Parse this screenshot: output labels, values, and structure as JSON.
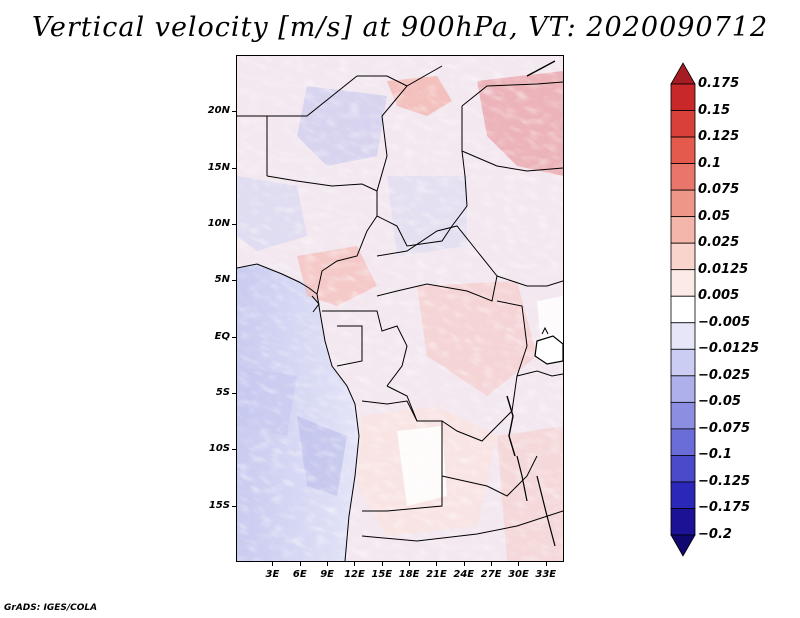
{
  "title": "Vertical velocity [m/s] at 900hPa, VT: 2020090712",
  "credit": "GrADS: IGES/COLA",
  "map": {
    "lon_range": [
      -1,
      35
    ],
    "lat_range": [
      -20,
      25
    ],
    "lat_ticks": [
      {
        "lat": 20,
        "label": "20N"
      },
      {
        "lat": 15,
        "label": "15N"
      },
      {
        "lat": 10,
        "label": "10N"
      },
      {
        "lat": 5,
        "label": "5N"
      },
      {
        "lat": 0,
        "label": "EQ"
      },
      {
        "lat": -5,
        "label": "5S"
      },
      {
        "lat": -10,
        "label": "10S"
      },
      {
        "lat": -15,
        "label": "15S"
      }
    ],
    "lon_ticks": [
      {
        "lon": 3,
        "label": "3E"
      },
      {
        "lon": 6,
        "label": "6E"
      },
      {
        "lon": 9,
        "label": "9E"
      },
      {
        "lon": 12,
        "label": "12E"
      },
      {
        "lon": 15,
        "label": "15E"
      },
      {
        "lon": 18,
        "label": "18E"
      },
      {
        "lon": 21,
        "label": "21E"
      },
      {
        "lon": 24,
        "label": "24E"
      },
      {
        "lon": 27,
        "label": "27E"
      },
      {
        "lon": 30,
        "label": "30E"
      },
      {
        "lon": 33,
        "label": "33E"
      }
    ]
  },
  "colorbar": {
    "labels": [
      "0.175",
      "0.15",
      "0.125",
      "0.1",
      "0.075",
      "0.05",
      "0.025",
      "0.0125",
      "0.005",
      "−0.005",
      "−0.0125",
      "−0.025",
      "−0.05",
      "−0.075",
      "−0.1",
      "−0.125",
      "−0.175",
      "−0.2"
    ],
    "colors": [
      "#a51d22",
      "#c8282a",
      "#d8403a",
      "#e45a4c",
      "#e8766a",
      "#ee9688",
      "#f4b6aa",
      "#f8d4cc",
      "#fbeae6",
      "#ffffff",
      "#e6e6f8",
      "#cccdf2",
      "#aeb0ec",
      "#8c8ee2",
      "#6a6cd8",
      "#4a4acb",
      "#2b27b8",
      "#1c1296",
      "#10086e"
    ]
  }
}
